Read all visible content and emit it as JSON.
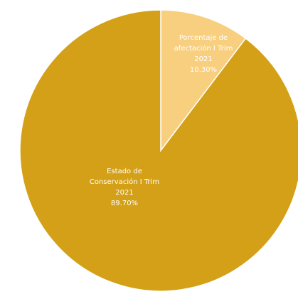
{
  "chart_data": {
    "type": "pie",
    "title": "",
    "start_angle_deg": 0,
    "direction": "clockwise",
    "slices": [
      {
        "label_lines": [
          "Porcentaje de",
          "afectación I Trim",
          "2021"
        ],
        "value": 10.3,
        "value_label": "10.30%",
        "color": "#F8CF7E",
        "label_color": "#6b4a00"
      },
      {
        "label_lines": [
          "Estado de",
          "Conservación I Trim",
          "2021"
        ],
        "value": 89.7,
        "value_label": "89.70%",
        "color": "#D4A017",
        "label_color": "#ffffff"
      }
    ],
    "slice_border_color": "#ffffff"
  }
}
